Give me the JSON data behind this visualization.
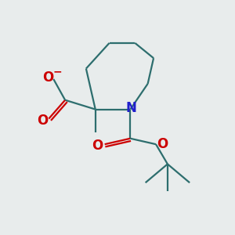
{
  "background_color": "#e8ecec",
  "bond_color": "#2d6e6e",
  "nitrogen_color": "#2020cc",
  "oxygen_color": "#cc0000",
  "bond_width": 1.6,
  "font_size_atom": 11,
  "figsize": [
    3.0,
    3.0
  ],
  "dpi": 100,
  "xlim": [
    0,
    10
  ],
  "ylim": [
    0,
    10
  ]
}
